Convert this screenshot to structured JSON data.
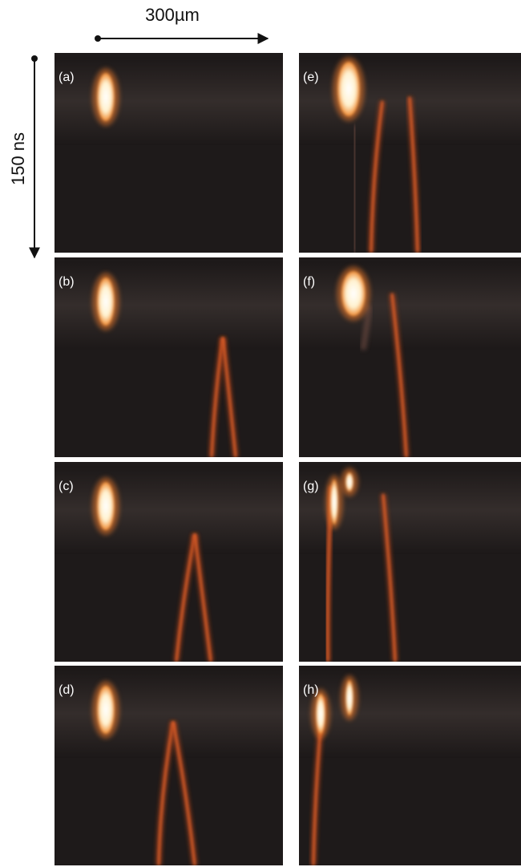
{
  "scale_bars": {
    "horizontal": "300µm",
    "vertical": "150 ns"
  },
  "panels": [
    {
      "label": "(a)"
    },
    {
      "label": "(b)"
    },
    {
      "label": "(c)"
    },
    {
      "label": "(d)"
    },
    {
      "label": "(e)"
    },
    {
      "label": "(f)"
    },
    {
      "label": "(g)"
    },
    {
      "label": "(h)"
    }
  ]
}
